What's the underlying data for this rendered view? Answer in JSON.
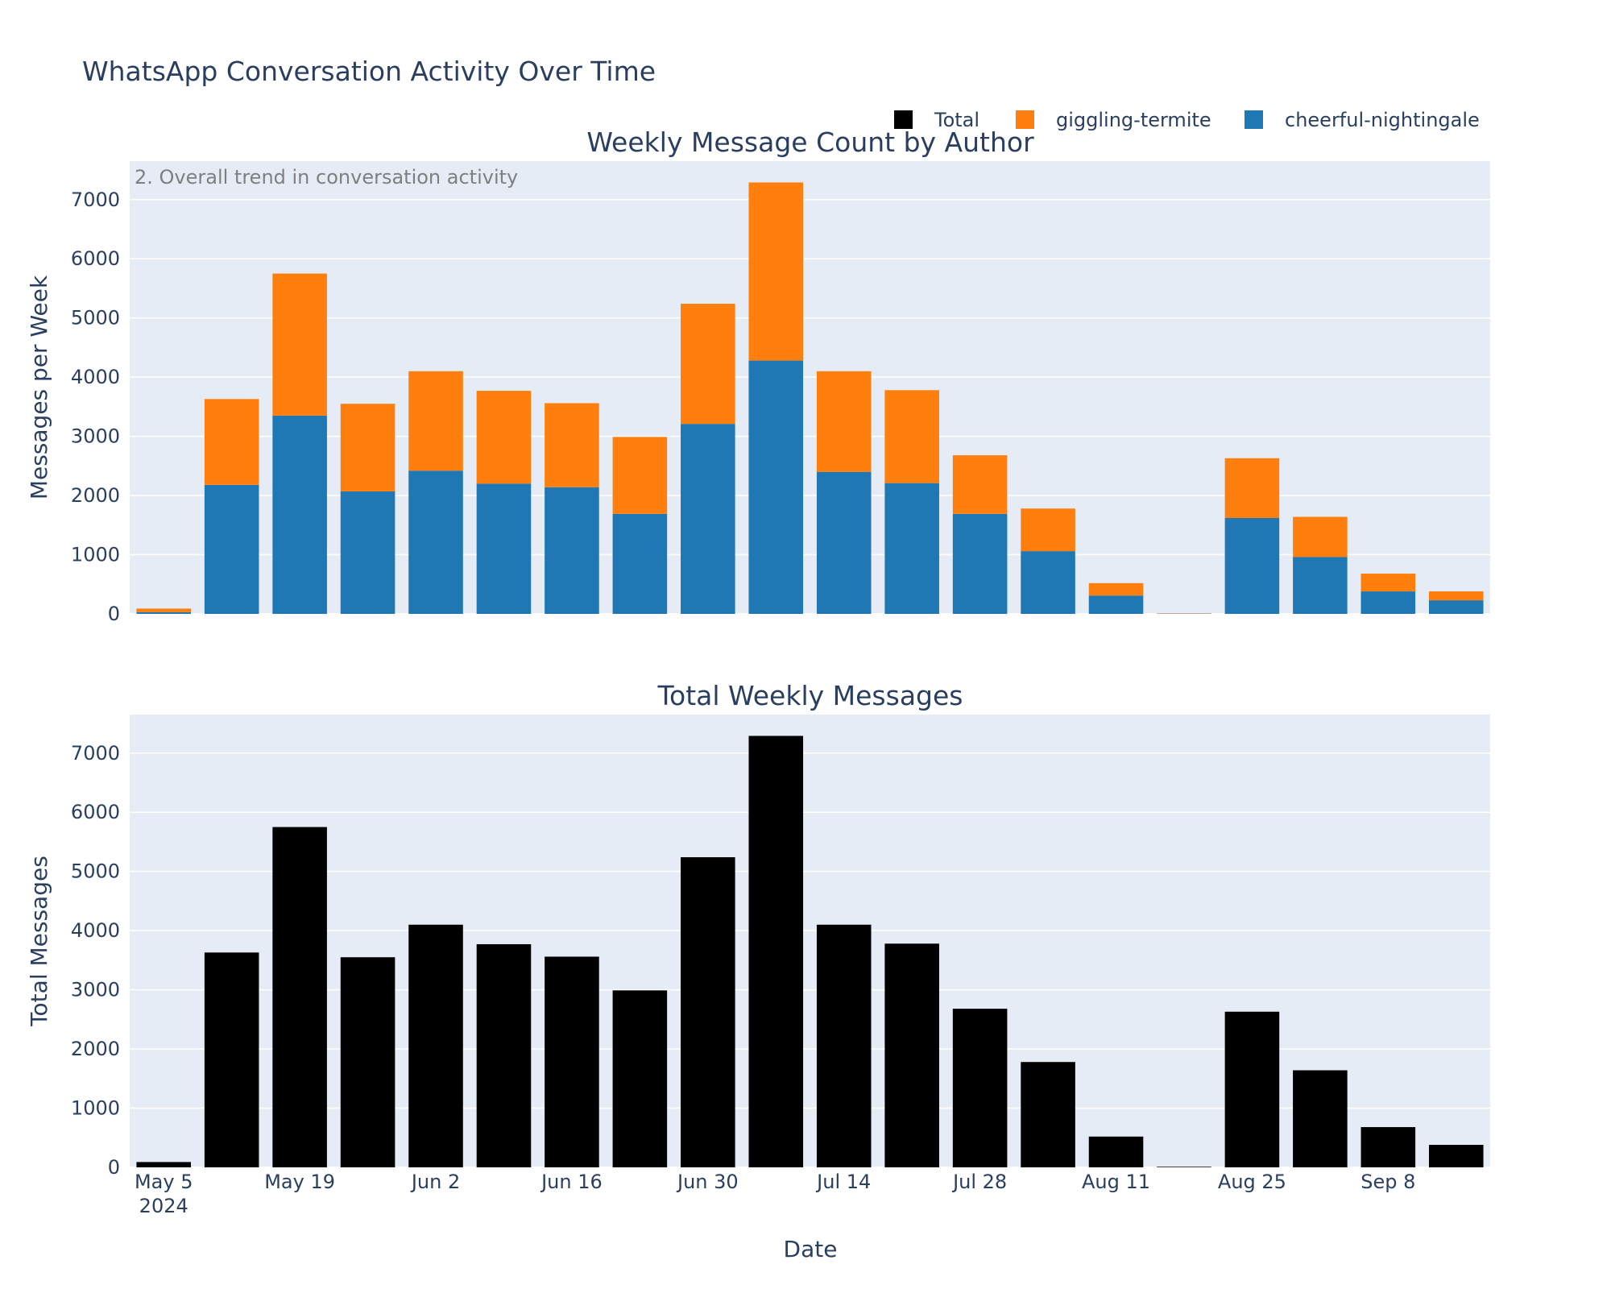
{
  "figure": {
    "title": "WhatsApp Conversation Activity Over Time"
  },
  "legend": {
    "placement": "top-right, horizontal",
    "items": [
      {
        "label": "Total",
        "color": "#000000"
      },
      {
        "label": "giggling-termite",
        "color": "#ff7f0e"
      },
      {
        "label": "cheerful-nightingale",
        "color": "#1f77b4"
      }
    ]
  },
  "colors": {
    "plot_background": "#e5ecf6",
    "gridline": "#ffffff",
    "text": "#2a3f5f",
    "annotation_text": "#7f7f7f",
    "cheerful_nightingale": "#1f77b4",
    "giggling_termite": "#ff7f0e",
    "total": "#000000"
  },
  "chart_data": [
    {
      "type": "bar",
      "barmode": "stack",
      "title": "Weekly Message Count by Author",
      "annotation": "2. Overall trend in conversation activity",
      "ylabel": "Messages per Week",
      "xlabel": "",
      "ylim": [
        0,
        7650
      ],
      "yticks": [
        0,
        1000,
        2000,
        3000,
        4000,
        5000,
        6000,
        7000
      ],
      "grid": true,
      "x": [
        "2024-05-05",
        "2024-05-12",
        "2024-05-19",
        "2024-05-26",
        "2024-06-02",
        "2024-06-09",
        "2024-06-16",
        "2024-06-23",
        "2024-06-30",
        "2024-07-07",
        "2024-07-14",
        "2024-07-21",
        "2024-07-28",
        "2024-08-04",
        "2024-08-11",
        "2024-08-18",
        "2024-08-25",
        "2024-09-01",
        "2024-09-08",
        "2024-09-15"
      ],
      "series": [
        {
          "name": "cheerful-nightingale",
          "values": [
            30,
            2180,
            3350,
            2070,
            2420,
            2200,
            2140,
            1690,
            3210,
            4280,
            2400,
            2210,
            1690,
            1060,
            310,
            5,
            1620,
            960,
            380,
            230
          ]
        },
        {
          "name": "giggling-termite",
          "values": [
            60,
            1450,
            2400,
            1480,
            1680,
            1570,
            1420,
            1300,
            2030,
            3010,
            1700,
            1570,
            990,
            720,
            210,
            5,
            1010,
            680,
            300,
            150
          ]
        }
      ]
    },
    {
      "type": "bar",
      "title": "Total Weekly Messages",
      "ylabel": "Total Messages",
      "xlabel": "Date",
      "ylim": [
        0,
        7650
      ],
      "yticks": [
        0,
        1000,
        2000,
        3000,
        4000,
        5000,
        6000,
        7000
      ],
      "xtick_labels": [
        "May 5\n2024",
        "May 19",
        "Jun 2",
        "Jun 16",
        "Jun 30",
        "Jul 14",
        "Jul 28",
        "Aug 11",
        "Aug 25",
        "Sep 8"
      ],
      "grid": true,
      "x": [
        "2024-05-05",
        "2024-05-12",
        "2024-05-19",
        "2024-05-26",
        "2024-06-02",
        "2024-06-09",
        "2024-06-16",
        "2024-06-23",
        "2024-06-30",
        "2024-07-07",
        "2024-07-14",
        "2024-07-21",
        "2024-07-28",
        "2024-08-04",
        "2024-08-11",
        "2024-08-18",
        "2024-08-25",
        "2024-09-01",
        "2024-09-08",
        "2024-09-15"
      ],
      "series": [
        {
          "name": "Total",
          "values": [
            90,
            3630,
            5750,
            3550,
            4100,
            3770,
            3560,
            2990,
            5240,
            7290,
            4100,
            3780,
            2680,
            1780,
            520,
            10,
            2630,
            1640,
            680,
            380
          ]
        }
      ]
    }
  ]
}
